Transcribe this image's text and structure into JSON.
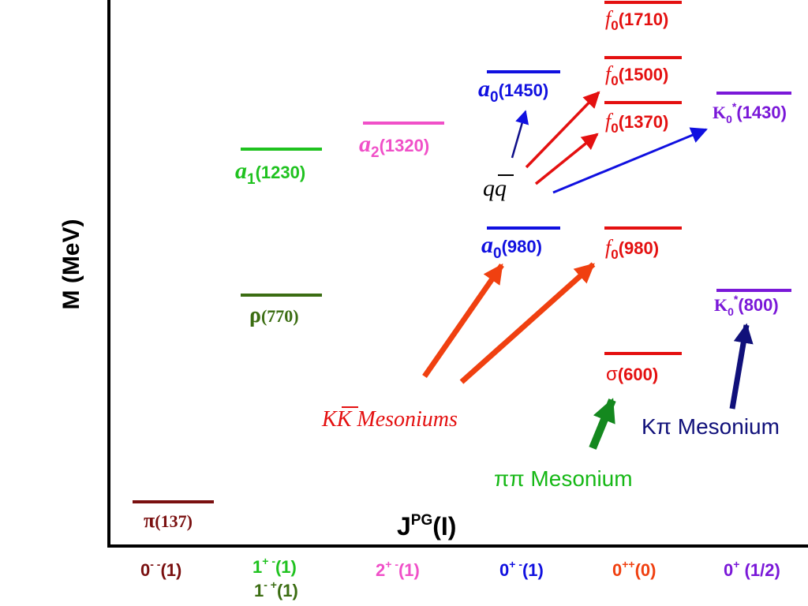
{
  "colors": {
    "axis": "#000000",
    "maroon": "#7a1010",
    "green": "#1fc21f",
    "darkgreen": "#3b6d12",
    "pink": "#f050c8",
    "blue": "#1010e0",
    "red": "#e41010",
    "orange": "#f04010",
    "purple": "#7a18d8",
    "navy": "#10107a",
    "mesongreen": "#14881e",
    "pipi": "#16b816"
  },
  "axes": {
    "y_label": "M (MeV)",
    "x_label_main": "J",
    "x_label_sup": "PG",
    "x_label_tail": "(I)"
  },
  "columns": {
    "c1": {
      "main": "0",
      "sup": "- -",
      "tail": "(1)"
    },
    "c2a": {
      "main": "1",
      "sup": "+ -",
      "tail": "(1)"
    },
    "c2b": {
      "main": "1",
      "sup": "- +",
      "tail": "(1)"
    },
    "c3": {
      "main": "2",
      "sup": "+ -",
      "tail": "(1)"
    },
    "c4": {
      "main": "0",
      "sup": "+ -",
      "tail": "(1)"
    },
    "c5": {
      "main": "0",
      "sup": "++",
      "tail": "(0)"
    },
    "c6": {
      "main": "0",
      "sup": "+",
      "tail": " (1/2)"
    }
  },
  "states": {
    "pi": {
      "sym": "π",
      "mass": "(137)"
    },
    "a1": {
      "sym": "a",
      "sub": "1",
      "mass": "(1230)"
    },
    "rho": {
      "sym": "ρ",
      "mass": "(770)"
    },
    "a2": {
      "sym": "a",
      "sub": "2",
      "mass": "(1320)"
    },
    "a0_1450": {
      "sym": "a",
      "sub": "0",
      "mass": "(1450)"
    },
    "a0_980": {
      "sym": "a",
      "sub": "0",
      "mass": "(980)"
    },
    "f0_1710": {
      "sym": "f",
      "sub": "0",
      "mass": "(1710)"
    },
    "f0_1500": {
      "sym": "f",
      "sub": "0",
      "mass": "(1500)"
    },
    "f0_1370": {
      "sym": "f",
      "sub": "0",
      "mass": "(1370)"
    },
    "f0_980": {
      "sym": "f",
      "sub": "0",
      "mass": "(980)"
    },
    "sigma": {
      "sym": "σ",
      "mass": "(600)"
    },
    "k1430": {
      "sym": "K",
      "sub": "0",
      "sup": "*",
      "mass": "(1430)"
    },
    "k800": {
      "sym": "K",
      "sub": "0",
      "sup": "*",
      "mass": "(800)"
    }
  },
  "annotations": {
    "qqbar_q1": "q",
    "qqbar_q2": "q",
    "kk_k1": "K",
    "kk_k2": "K",
    "kk_rest": " Mesoniums",
    "kpi": "Kπ Mesonium",
    "pipi": "ππ Mesonium"
  }
}
